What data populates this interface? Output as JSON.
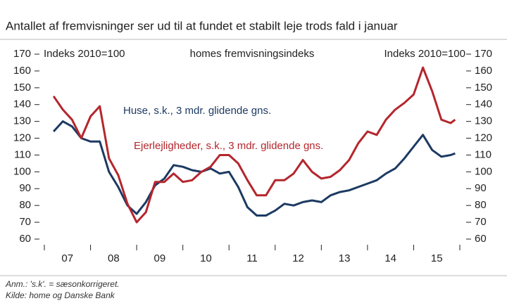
{
  "chart_data": {
    "type": "line",
    "title": "Antallet af fremvisninger ser ud til at fundet et stabilt leje trods fald i januar",
    "annotations": {
      "left_axis": "Indeks 2010=100",
      "center": "homes fremvisningsindeks",
      "right_axis": "Indeks 2010=100"
    },
    "notes": [
      "Anm.: 's.k'. = sæsonkorrigeret.",
      "Kilde: home og Danske Bank"
    ],
    "x": [
      2007.2,
      2007.4,
      2007.6,
      2007.8,
      2008.0,
      2008.2,
      2008.4,
      2008.6,
      2008.8,
      2009.0,
      2009.2,
      2009.4,
      2009.6,
      2009.8,
      2010.0,
      2010.2,
      2010.4,
      2010.6,
      2010.8,
      2011.0,
      2011.2,
      2011.4,
      2011.6,
      2011.8,
      2012.0,
      2012.2,
      2012.4,
      2012.6,
      2012.8,
      2013.0,
      2013.2,
      2013.4,
      2013.6,
      2013.8,
      2014.0,
      2014.2,
      2014.4,
      2014.6,
      2014.8,
      2015.0,
      2015.2,
      2015.4,
      2015.6,
      2015.8,
      2015.9
    ],
    "series": [
      {
        "name": "Huse, s.k., 3 mdr. glidende gns.",
        "color": "#1c3a62",
        "values": [
          124,
          130,
          127,
          120,
          118,
          118,
          100,
          91,
          80,
          75,
          82,
          92,
          96,
          104,
          103,
          101,
          100,
          102,
          99,
          100,
          91,
          79,
          74,
          74,
          77,
          81,
          80,
          82,
          83,
          82,
          86,
          88,
          89,
          91,
          93,
          95,
          99,
          102,
          108,
          115,
          122,
          113,
          109,
          110,
          111
        ]
      },
      {
        "name": "Ejerlejligheder, s.k., 3 mdr. glidende gns.",
        "color": "#b4262d",
        "values": [
          145,
          137,
          131,
          120,
          133,
          139,
          108,
          98,
          81,
          70,
          76,
          94,
          94,
          99,
          94,
          95,
          100,
          103,
          110,
          110,
          105,
          95,
          86,
          86,
          95,
          95,
          99,
          107,
          100,
          96,
          97,
          101,
          107,
          117,
          124,
          122,
          131,
          137,
          141,
          146,
          162,
          148,
          131,
          129,
          131
        ]
      }
    ],
    "xlim": [
      2007,
      2016
    ],
    "xticks": [
      {
        "value": 2007.5,
        "label": "07"
      },
      {
        "value": 2008.5,
        "label": "08"
      },
      {
        "value": 2009.5,
        "label": "09"
      },
      {
        "value": 2010.5,
        "label": "10"
      },
      {
        "value": 2011.5,
        "label": "11"
      },
      {
        "value": 2012.5,
        "label": "12"
      },
      {
        "value": 2013.5,
        "label": "13"
      },
      {
        "value": 2014.5,
        "label": "14"
      },
      {
        "value": 2015.5,
        "label": "15"
      }
    ],
    "ylim": [
      60,
      170
    ],
    "yticks": [
      60,
      70,
      80,
      90,
      100,
      110,
      120,
      130,
      140,
      150,
      160,
      170
    ],
    "y2lim": [
      60,
      170
    ],
    "y2ticks": [
      60,
      70,
      80,
      90,
      100,
      110,
      120,
      130,
      140,
      150,
      160,
      170
    ],
    "grid": false
  }
}
